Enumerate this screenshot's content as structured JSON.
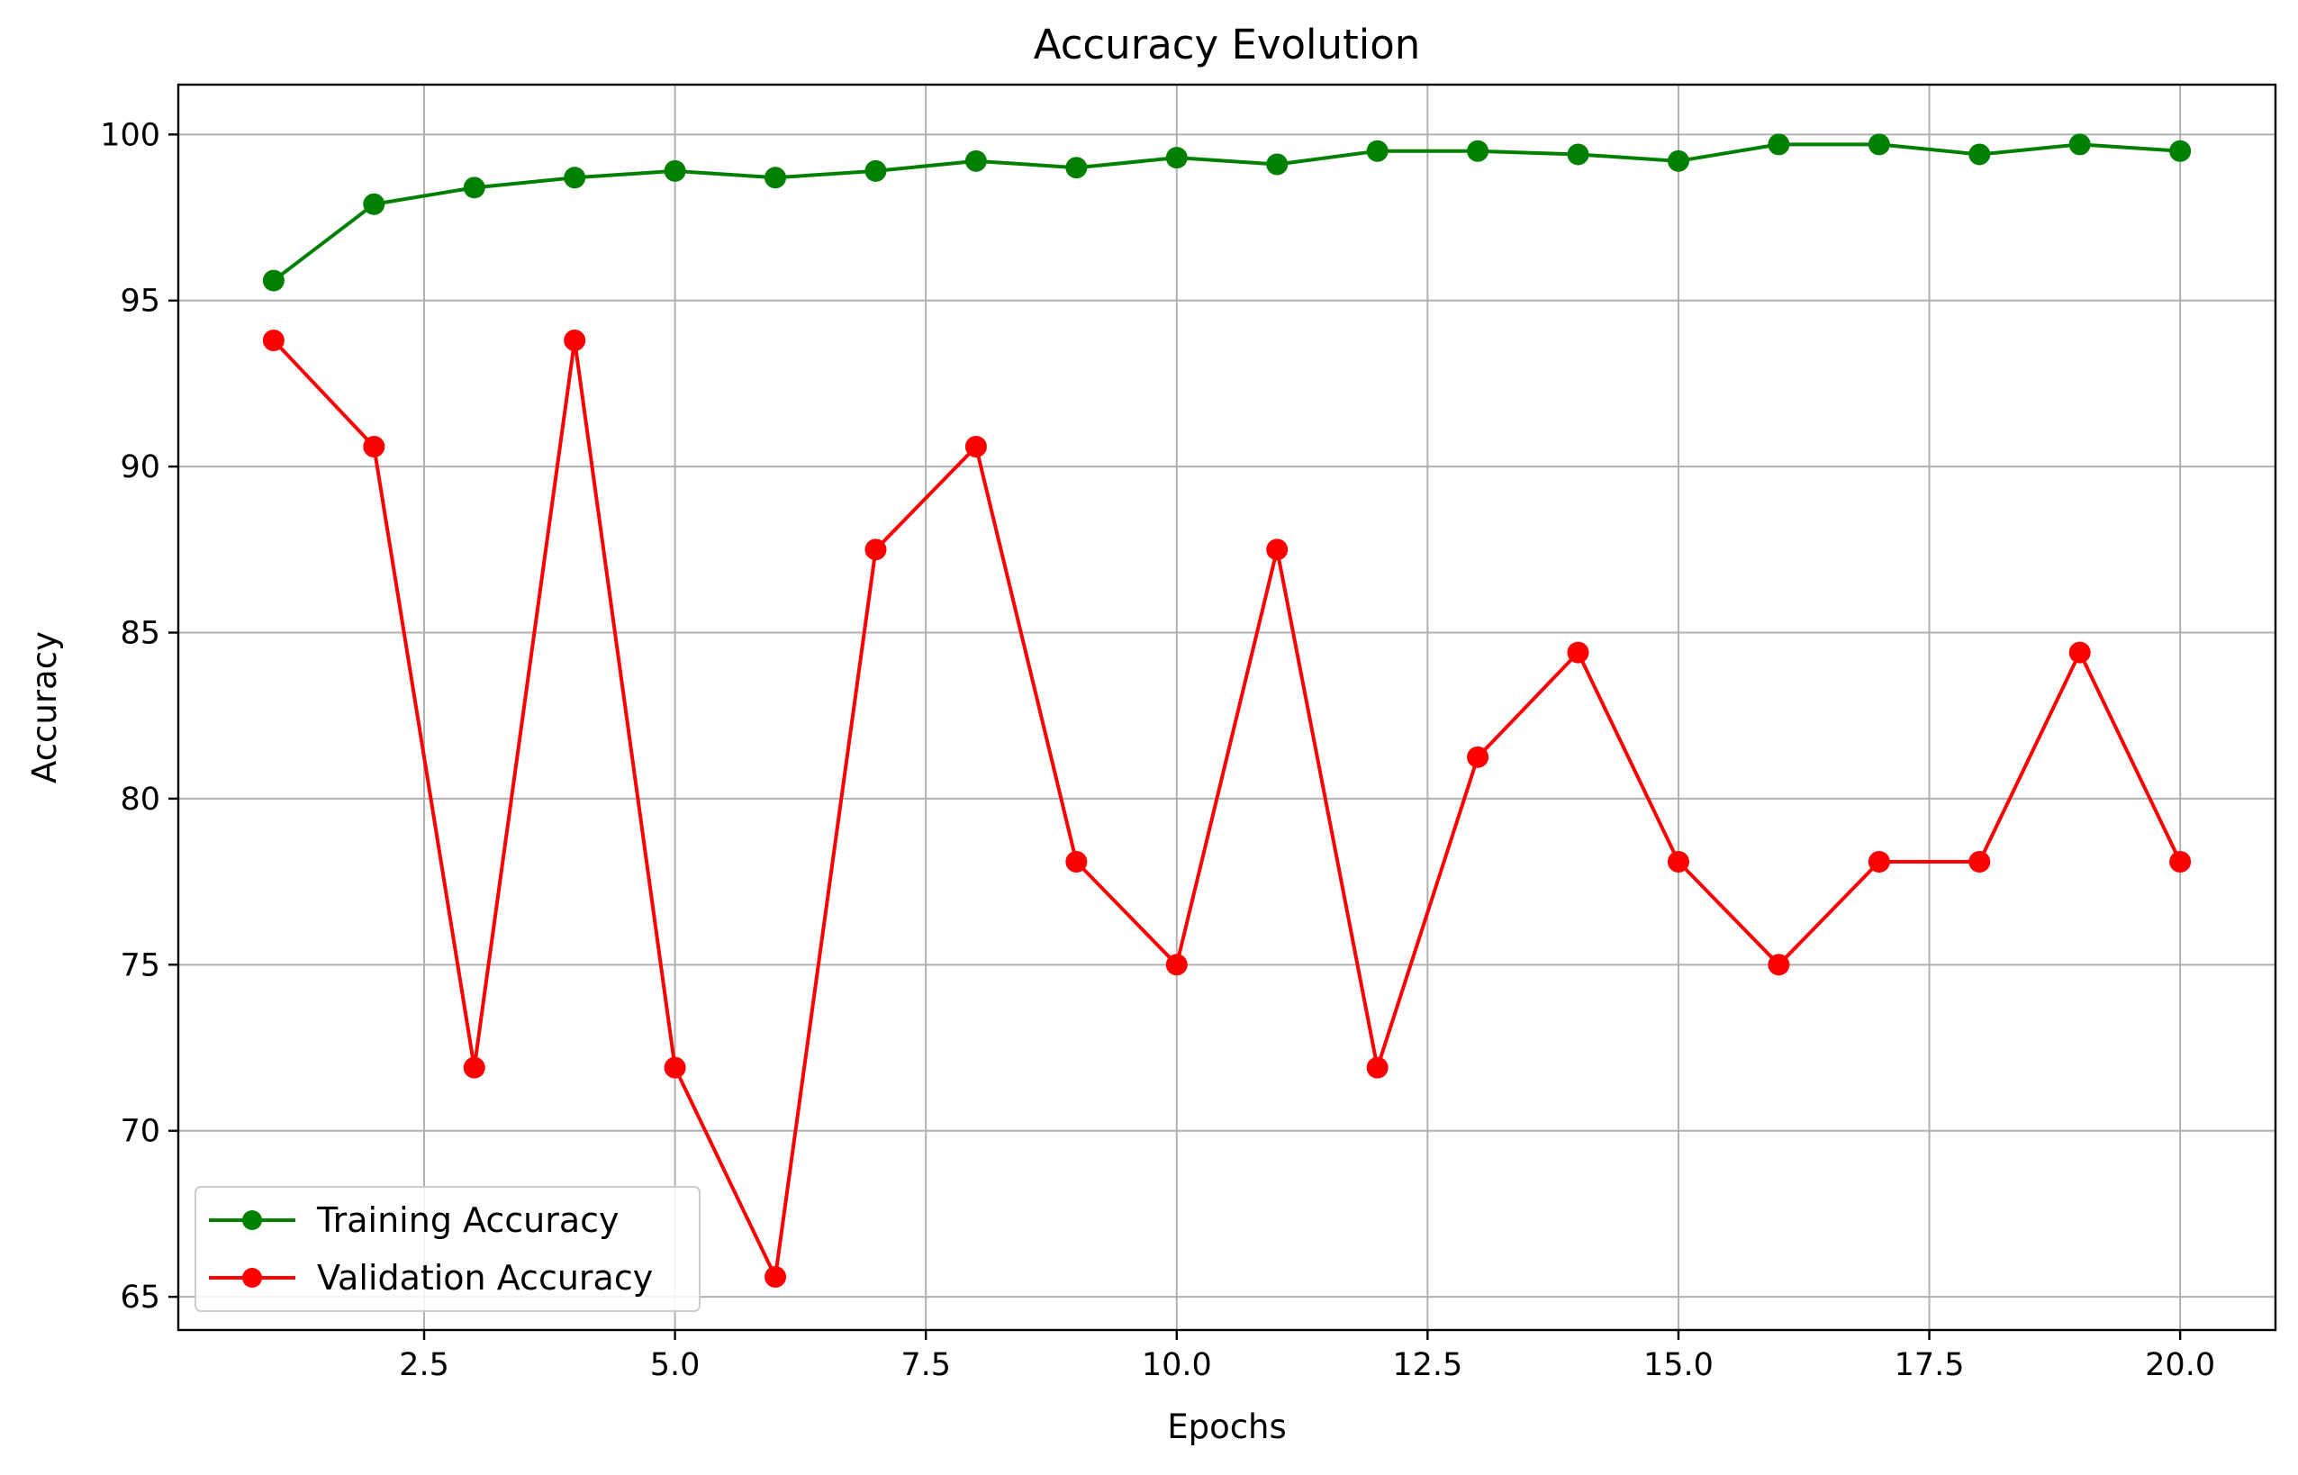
{
  "chart_data": {
    "type": "line",
    "title": "Accuracy Evolution",
    "xlabel": "Epochs",
    "ylabel": "Accuracy",
    "xlim": [
      0.05,
      20.95
    ],
    "ylim": [
      64.0,
      101.5
    ],
    "xticks": [
      2.5,
      5.0,
      7.5,
      10.0,
      12.5,
      15.0,
      17.5,
      20.0
    ],
    "xtick_labels": [
      "2.5",
      "5.0",
      "7.5",
      "10.0",
      "12.5",
      "15.0",
      "17.5",
      "20.0"
    ],
    "yticks": [
      65,
      70,
      75,
      80,
      85,
      90,
      95,
      100
    ],
    "ytick_labels": [
      "65",
      "70",
      "75",
      "80",
      "85",
      "90",
      "95",
      "100"
    ],
    "grid": true,
    "legend_position": "lower-left",
    "x": [
      1,
      2,
      3,
      4,
      5,
      6,
      7,
      8,
      9,
      10,
      11,
      12,
      13,
      14,
      15,
      16,
      17,
      18,
      19,
      20
    ],
    "series": [
      {
        "name": "Training Accuracy",
        "color": "#008000",
        "marker": "circle",
        "values": [
          95.6,
          97.9,
          98.4,
          98.7,
          98.9,
          98.7,
          98.9,
          99.2,
          99.0,
          99.3,
          99.1,
          99.5,
          99.5,
          99.4,
          99.2,
          99.7,
          99.7,
          99.4,
          99.7,
          99.5
        ]
      },
      {
        "name": "Validation Accuracy",
        "color": "#ff0000",
        "marker": "circle",
        "values": [
          93.8,
          90.6,
          71.9,
          93.8,
          71.9,
          65.6,
          87.5,
          90.6,
          78.1,
          75.0,
          87.5,
          71.9,
          81.25,
          84.4,
          78.1,
          75.0,
          78.1,
          78.1,
          84.4,
          78.1
        ]
      }
    ]
  }
}
